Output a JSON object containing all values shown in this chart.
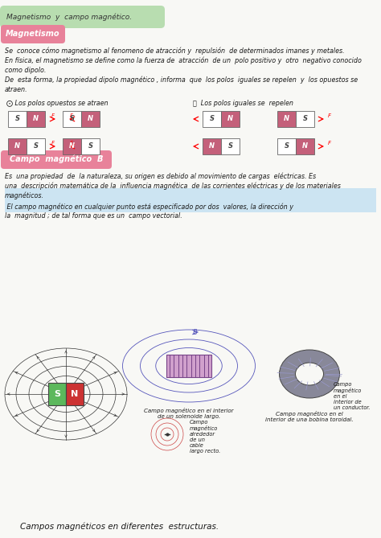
{
  "bg_color": "#f8f8f5",
  "title_box_color": "#b8ddb0",
  "subtitle_box_color": "#e8829a",
  "highlight_color": "#a8d4f0",
  "magnet_pink": "#c4607a",
  "magnet_white": "#ffffff",
  "text_color": "#1a1a1a",
  "title": "Magnetismo  y  campo magnético.",
  "subtitle1": "Magnetismo",
  "para1": "Se  conoce cómo magnetismo al fenomeno de atracción y  repulsión  de determinados imanes y metales.",
  "para2": "En física, el magnetismo se define como la fuerza de  atracción  de un  polo positivo y  otro  negativo conocido",
  "para2b": "como dipolo.",
  "para3": "De  esta forma, la propiedad dipolo magnético , informa  que  los polos  iguales se repelen  y  los opuestos se",
  "para3b": "atraen.",
  "label_a": "⨀ Los polos opuestos se atraen",
  "label_b": "Ⓑ  Los polos iguales se  repelen",
  "subtitle2": "Campo  magnético  B⃗",
  "para4": "Es  una propiedad  de  la naturaleza, su origen es debido al movimiento de cargas  eléctricas. Es",
  "para5": "una  descripción matemática de la  influencia magnética  de las corrientes eléctricas y de los materiales",
  "para6_normal": "magnéticos.",
  "para6_hl": " El campo magnético en cualquier punto está especificado por dos  valores, la dirección y",
  "para7_hl": "la  magnitud ; de tal forma que es un  campo vectorial.",
  "bottom_label": "Campos magnéticos en diferentes  estructuras.",
  "caption1": "Campo magnético en el interior\nde un solenoide largo.",
  "caption2": "Campo\nmagnético\nalrededor\nde un\ncable\nlargo recto.",
  "caption3": "Campo magnético en el\ninterior de una bobina toroidal.",
  "caption4": "Campo\nmagnético\nen el\ninterior de\nun conductor."
}
